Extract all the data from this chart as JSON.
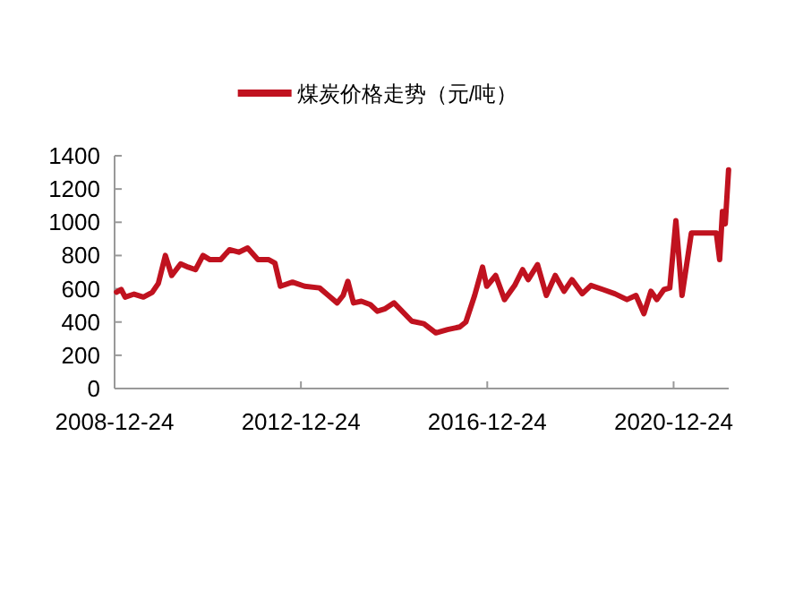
{
  "chart_data": {
    "type": "line",
    "legend": "top",
    "grid": false,
    "marker": "none",
    "line_style": "solid",
    "xlim": [
      "2008-12-24",
      "2022-03-01"
    ],
    "xticks": [
      "2008-12-24",
      "2012-12-24",
      "2016-12-24",
      "2020-12-24"
    ],
    "ylim": [
      0,
      1400
    ],
    "yticks": [
      0,
      200,
      400,
      600,
      800,
      1000,
      1200,
      1400
    ],
    "series": [
      {
        "name": "煤炭价格走势（元/吨）",
        "color": "#c0121f",
        "x": [
          "2009-01-08",
          "2009-02-14",
          "2009-03-17",
          "2009-05-26",
          "2009-08-07",
          "2009-10-15",
          "2009-12-02",
          "2010-01-26",
          "2010-03-17",
          "2010-05-26",
          "2010-07-24",
          "2010-09-20",
          "2010-11-17",
          "2011-01-11",
          "2011-04-05",
          "2011-06-13",
          "2011-08-25",
          "2011-11-02",
          "2012-01-22",
          "2012-04-16",
          "2012-06-03",
          "2012-07-16",
          "2012-10-19",
          "2013-01-22",
          "2013-05-19",
          "2013-07-27",
          "2013-10-04",
          "2013-11-20",
          "2013-12-27",
          "2014-02-09",
          "2014-04-12",
          "2014-06-21",
          "2014-08-15",
          "2014-10-16",
          "2014-12-24",
          "2015-05-12",
          "2015-08-15",
          "2015-11-17",
          "2016-02-17",
          "2016-05-22",
          "2016-07-09",
          "2016-09-16",
          "2016-11-17",
          "2016-12-20",
          "2017-02-28",
          "2017-05-08",
          "2017-07-27",
          "2017-09-27",
          "2017-11-10",
          "2018-01-22",
          "2018-04-01",
          "2018-06-10",
          "2018-08-18",
          "2018-10-19",
          "2019-01-08",
          "2019-03-17",
          "2019-06-21",
          "2019-09-20",
          "2019-12-24",
          "2020-03-04",
          "2020-05-05",
          "2020-06-29",
          "2020-08-15",
          "2020-10-09",
          "2020-11-24",
          "2021-01-11",
          "2021-02-28",
          "2021-05-12",
          "2021-07-09",
          "2021-11-24",
          "2021-12-20",
          "2022-01-11",
          "2022-02-02",
          "2022-02-28"
        ],
        "values": [
          580,
          596,
          550,
          568,
          550,
          578,
          632,
          800,
          680,
          750,
          730,
          715,
          800,
          775,
          775,
          835,
          820,
          845,
          775,
          775,
          755,
          615,
          640,
          615,
          605,
          560,
          515,
          560,
          645,
          515,
          525,
          505,
          465,
          480,
          515,
          405,
          390,
          335,
          355,
          370,
          400,
          560,
          730,
          615,
          680,
          535,
          620,
          715,
          655,
          745,
          560,
          680,
          585,
          655,
          570,
          620,
          595,
          570,
          535,
          560,
          450,
          585,
          535,
          595,
          605,
          1010,
          560,
          935,
          935,
          935,
          775,
          1065,
          990,
          1315
        ]
      }
    ]
  }
}
